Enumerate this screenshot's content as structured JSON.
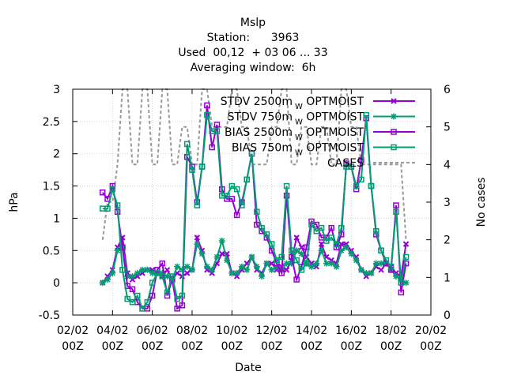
{
  "chart_data": {
    "type": "line",
    "title_lines": [
      "Mslp",
      "Station:      3963",
      "Used  00,12  + 03 06 ... 33",
      "Averaging window:  6h"
    ],
    "xlabel": "Date",
    "ylabel": "hPa",
    "y2label": "No cases",
    "xlim": [
      0,
      18
    ],
    "ylim": [
      -0.5,
      3
    ],
    "y2lim": [
      0,
      6
    ],
    "x_ticks": [
      {
        "x": 0,
        "line1": "02/02",
        "line2": "00Z"
      },
      {
        "x": 2,
        "line1": "04/02",
        "line2": "00Z"
      },
      {
        "x": 4,
        "line1": "06/02",
        "line2": "00Z"
      },
      {
        "x": 6,
        "line1": "08/02",
        "line2": "00Z"
      },
      {
        "x": 8,
        "line1": "10/02",
        "line2": "00Z"
      },
      {
        "x": 10,
        "line1": "12/02",
        "line2": "00Z"
      },
      {
        "x": 12,
        "line1": "14/02",
        "line2": "00Z"
      },
      {
        "x": 14,
        "line1": "16/02",
        "line2": "00Z"
      },
      {
        "x": 16,
        "line1": "18/02",
        "line2": "00Z"
      },
      {
        "x": 18,
        "line1": "20/02",
        "line2": "00Z"
      }
    ],
    "y_ticks": [
      "-0.5",
      "0",
      "0.5",
      "1",
      "1.5",
      "2",
      "2.5",
      "3"
    ],
    "y2_ticks": [
      "0",
      "1",
      "2",
      "3",
      "4",
      "5",
      "6"
    ],
    "grid": true,
    "legend_position": "top-right",
    "legend": [
      {
        "text": "STDV 2500m",
        "sub": "W",
        "suffix": " OPTMOIST"
      },
      {
        "text": "STDV 750m",
        "sub": "W",
        "suffix": " OPTMOIST"
      },
      {
        "text": "BIAS 2500m",
        "sub": "W",
        "suffix": " OPTMOIST"
      },
      {
        "text": "BIAS 750m",
        "sub": "W",
        "suffix": " OPTMOIST"
      },
      {
        "text": "CASES",
        "sub": "",
        "suffix": ""
      }
    ],
    "series": [
      {
        "color": "#9400d3",
        "marker": "x",
        "axis": "y",
        "x": [
          1.5,
          1.75,
          2,
          2.25,
          2.5,
          2.75,
          3,
          3.25,
          3.5,
          3.75,
          4,
          4.25,
          4.5,
          4.75,
          5,
          5.25,
          5.5,
          5.75,
          6,
          6.25,
          6.5,
          6.75,
          7,
          7.25,
          7.5,
          7.75,
          8,
          8.25,
          8.5,
          8.75,
          9,
          9.25,
          9.5,
          9.75,
          10,
          10.25,
          10.5,
          10.75,
          11,
          11.25,
          11.5,
          11.75,
          12,
          12.25,
          12.5,
          12.75,
          13,
          13.25,
          13.5,
          13.75,
          14,
          14.25,
          14.5,
          14.75,
          15,
          15.25,
          15.5,
          15.75,
          16,
          16.25,
          16.5,
          16.75
        ],
        "values": [
          0,
          0.1,
          0.2,
          0.55,
          0.7,
          0.15,
          0.05,
          0.1,
          0.15,
          0.2,
          0.2,
          0.15,
          0.1,
          0.2,
          0.05,
          0.15,
          0.1,
          0.15,
          0.2,
          0.7,
          0.5,
          0.2,
          0.15,
          0.3,
          0.45,
          0.45,
          0.15,
          0.1,
          0.2,
          0.3,
          0.4,
          0.2,
          0.15,
          0.3,
          0.3,
          0.2,
          0.25,
          0.2,
          0.35,
          0.7,
          0.55,
          0.4,
          0.3,
          0.25,
          0.6,
          0.4,
          0.35,
          0.3,
          0.6,
          0.6,
          0.5,
          0.4,
          0.2,
          0.1,
          0.15,
          0.25,
          0.2,
          0.3,
          0.25,
          0.15,
          0.1,
          0.6
        ]
      },
      {
        "color": "#009e73",
        "marker": "star",
        "axis": "y",
        "x": [
          1.5,
          1.75,
          2,
          2.25,
          2.5,
          2.75,
          3,
          3.25,
          3.5,
          3.75,
          4,
          4.25,
          4.5,
          4.75,
          5,
          5.25,
          5.5,
          5.75,
          6,
          6.25,
          6.5,
          6.75,
          7,
          7.25,
          7.5,
          7.75,
          8,
          8.25,
          8.5,
          8.75,
          9,
          9.25,
          9.5,
          9.75,
          10,
          10.25,
          10.5,
          10.75,
          11,
          11.25,
          11.5,
          11.75,
          12,
          12.25,
          12.5,
          12.75,
          13,
          13.25,
          13.5,
          13.75,
          14,
          14.25,
          14.5,
          14.75,
          15,
          15.25,
          15.5,
          15.75,
          16,
          16.25,
          16.5,
          16.75
        ],
        "values": [
          0,
          0.05,
          0.15,
          0.5,
          0.55,
          0.1,
          0.1,
          0.15,
          0.2,
          0.2,
          0.15,
          0.15,
          0.15,
          0.1,
          0.05,
          0.25,
          0.2,
          0.25,
          0.2,
          0.6,
          0.45,
          0.25,
          0.2,
          0.4,
          0.65,
          0.35,
          0.15,
          0.15,
          0.25,
          0.2,
          0.4,
          0.25,
          0.1,
          0.3,
          0.2,
          0.25,
          0.2,
          0.3,
          0.3,
          0.5,
          0.45,
          0.3,
          0.25,
          0.3,
          0.5,
          0.3,
          0.3,
          0.25,
          0.5,
          0.55,
          0.45,
          0.35,
          0.2,
          0.15,
          0.15,
          0.3,
          0.3,
          0.3,
          0.2,
          0.1,
          0.05,
          0.0
        ]
      },
      {
        "color": "#9400d3",
        "marker": "square",
        "axis": "y",
        "x": [
          1.5,
          1.75,
          2,
          2.25,
          2.5,
          2.75,
          3,
          3.25,
          3.5,
          3.75,
          4,
          4.25,
          4.5,
          4.75,
          5,
          5.25,
          5.5,
          5.75,
          6,
          6.25,
          6.5,
          6.75,
          7,
          7.25,
          7.5,
          7.75,
          8,
          8.25,
          8.5,
          8.75,
          9,
          9.25,
          9.5,
          9.75,
          10,
          10.25,
          10.5,
          10.75,
          11,
          11.25,
          11.5,
          11.75,
          12,
          12.25,
          12.5,
          12.75,
          13,
          13.25,
          13.5,
          13.75,
          14,
          14.25,
          14.5,
          14.75,
          15,
          15.25,
          15.5,
          15.75,
          16,
          16.25,
          16.5,
          16.75
        ],
        "values": [
          1.4,
          1.3,
          1.5,
          1.1,
          0.55,
          -0.05,
          -0.1,
          -0.3,
          -0.4,
          -0.4,
          -0.2,
          0.2,
          0.3,
          -0.2,
          0.05,
          -0.4,
          -0.35,
          1.95,
          1.8,
          1.25,
          1.8,
          2.75,
          2.1,
          2.45,
          1.45,
          1.3,
          1.3,
          1.05,
          1.25,
          1.6,
          2.0,
          0.9,
          0.8,
          0.7,
          0.5,
          0.3,
          0.15,
          1.35,
          0.4,
          0.05,
          0.25,
          0.55,
          0.95,
          0.9,
          0.7,
          0.7,
          0.85,
          0.55,
          0.75,
          1.85,
          1.8,
          1.45,
          1.9,
          2.55,
          1.5,
          0.75,
          0.5,
          0.3,
          0.2,
          1.2,
          -0.15,
          0.3
        ]
      },
      {
        "color": "#009e73",
        "marker": "square",
        "axis": "y",
        "x": [
          1.5,
          1.75,
          2,
          2.25,
          2.5,
          2.75,
          3,
          3.25,
          3.5,
          3.75,
          4,
          4.25,
          4.5,
          4.75,
          5,
          5.25,
          5.5,
          5.75,
          6,
          6.25,
          6.5,
          6.75,
          7,
          7.25,
          7.5,
          7.75,
          8,
          8.25,
          8.5,
          8.75,
          9,
          9.25,
          9.5,
          9.75,
          10,
          10.25,
          10.5,
          10.75,
          11,
          11.25,
          11.5,
          11.75,
          12,
          12.25,
          12.5,
          12.75,
          13,
          13.25,
          13.5,
          13.75,
          14,
          14.25,
          14.5,
          14.75,
          15,
          15.25,
          15.5,
          15.75,
          16,
          16.25,
          16.5,
          16.75
        ],
        "values": [
          1.15,
          1.15,
          1.45,
          1.2,
          0.2,
          -0.25,
          -0.3,
          -0.2,
          -0.4,
          -0.3,
          0.0,
          0.15,
          0.1,
          -0.15,
          0.1,
          -0.25,
          -0.2,
          2.15,
          1.75,
          1.2,
          1.8,
          2.6,
          2.35,
          2.35,
          1.35,
          1.35,
          1.5,
          1.45,
          1.2,
          1.6,
          2.0,
          1.1,
          0.85,
          0.75,
          0.6,
          0.35,
          0.4,
          1.5,
          0.5,
          0.35,
          0.2,
          0.3,
          0.9,
          0.8,
          0.85,
          0.65,
          0.7,
          0.6,
          0.85,
          1.8,
          1.8,
          1.5,
          1.6,
          2.6,
          1.5,
          0.8,
          0.5,
          0.35,
          0.25,
          1.1,
          0.0,
          0.4
        ]
      },
      {
        "color": "#999999",
        "marker": "none",
        "axis": "y2",
        "dashed": true,
        "x": [
          1.5,
          1.75,
          2,
          2.25,
          2.5,
          2.75,
          3,
          3.25,
          3.5,
          3.75,
          4,
          4.25,
          4.5,
          4.75,
          5,
          5.25,
          5.5,
          5.75,
          6,
          6.25,
          6.5,
          6.75,
          7,
          7.25,
          7.5,
          7.75,
          8,
          8.25,
          8.5,
          8.75,
          9,
          9.25,
          9.5,
          9.75,
          10,
          10.25,
          10.5,
          10.75,
          11,
          11.25,
          11.5,
          11.75,
          12,
          12.25,
          12.5,
          12.75,
          13,
          13.25,
          13.5,
          13.75,
          14,
          14.25,
          14.5,
          14.75,
          15,
          15.25,
          15.5,
          15.75,
          16,
          16.25,
          16.5,
          16.75
        ],
        "values": [
          2,
          3,
          3,
          4,
          6,
          6,
          4,
          4,
          6,
          6,
          4,
          4,
          6,
          6,
          4,
          4,
          5,
          5,
          4,
          4,
          6,
          6,
          5,
          5,
          5,
          5,
          6,
          6,
          5,
          5,
          4,
          4,
          4,
          4,
          5,
          5,
          6,
          6,
          4,
          4,
          5,
          5,
          4,
          4,
          5,
          5,
          4,
          4,
          6,
          6,
          5,
          5,
          4,
          4,
          4,
          4,
          4,
          4,
          4,
          4,
          4,
          2
        ]
      }
    ]
  }
}
